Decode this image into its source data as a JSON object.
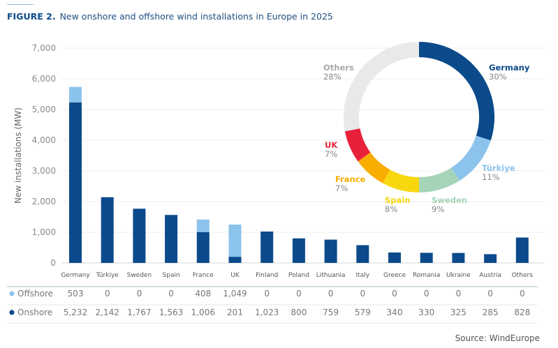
{
  "figure_label": "FIGURE 2.",
  "source": "Source: WindEurope",
  "chart_data": [
    {
      "type": "bar",
      "stacked": true,
      "title": "New onshore and offshore wind installations in Europe in 2025",
      "ylabel": "New installations (MW)",
      "ylim": [
        0,
        7000
      ],
      "yticks": [
        "0",
        "1,000",
        "2,000",
        "3,000",
        "4,000",
        "5,000",
        "6,000",
        "7,000"
      ],
      "grid": true,
      "categories": [
        "Germany",
        "Türkiye",
        "Sweden",
        "Spain",
        "France",
        "UK",
        "Finland",
        "Poland",
        "Lithuania",
        "Italy",
        "Greece",
        "Romania",
        "Ukraine",
        "Austria",
        "Others"
      ],
      "series": [
        {
          "name": "Onshore",
          "color": "#0b4a8b",
          "values": [
            5232,
            2142,
            1767,
            1563,
            1006,
            201,
            1023,
            800,
            759,
            579,
            340,
            330,
            325,
            285,
            828
          ],
          "labels": [
            "5,232",
            "2,142",
            "1,767",
            "1,563",
            "1,006",
            "201",
            "1,023",
            "800",
            "759",
            "579",
            "340",
            "330",
            "325",
            "285",
            "828"
          ]
        },
        {
          "name": "Offshore",
          "color": "#8cc3ec",
          "values": [
            503,
            0,
            0,
            0,
            408,
            1049,
            0,
            0,
            0,
            0,
            0,
            0,
            0,
            0,
            0
          ],
          "labels": [
            "503",
            "0",
            "0",
            "0",
            "408",
            "1,049",
            "0",
            "0",
            "0",
            "0",
            "0",
            "0",
            "0",
            "0",
            "0"
          ]
        }
      ]
    },
    {
      "type": "pie",
      "donut": true,
      "slices": [
        {
          "label": "Germany",
          "value": 30,
          "text": "30%",
          "color": "#0b4a8b"
        },
        {
          "label": "Türkiye",
          "value": 11,
          "text": "11%",
          "color": "#8cc3ec"
        },
        {
          "label": "Sweden",
          "value": 9,
          "text": "9%",
          "color": "#a6d4b9"
        },
        {
          "label": "Spain",
          "value": 8,
          "text": "8%",
          "color": "#f7d80f"
        },
        {
          "label": "France",
          "value": 7,
          "text": "7%",
          "color": "#f9ad00"
        },
        {
          "label": "UK",
          "value": 7,
          "text": "7%",
          "color": "#e8213a"
        },
        {
          "label": "Others",
          "value": 28,
          "text": "28%",
          "color": "#e9e9e9"
        }
      ]
    }
  ]
}
